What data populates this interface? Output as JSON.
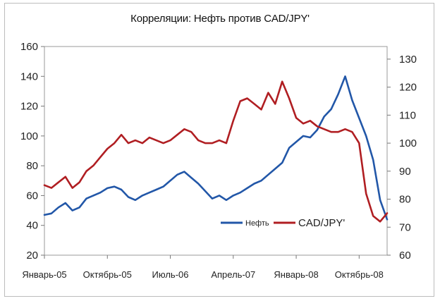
{
  "chart_data": {
    "type": "line",
    "title": "Корреляции: Нефть против CAD/JPY'",
    "xlabel": "",
    "ylabel": "",
    "y_left": {
      "ticks": [
        20,
        40,
        60,
        80,
        100,
        120,
        140,
        160
      ],
      "range": [
        20,
        160
      ]
    },
    "y_right": {
      "ticks": [
        60,
        70,
        80,
        90,
        100,
        110,
        120,
        130
      ],
      "range": [
        60,
        134.5
      ]
    },
    "x_ticks": [
      "Январь-05",
      "Октябрь-05",
      "Июль-06",
      "Апрель-07",
      "Январь-08",
      "Октябрь-08"
    ],
    "x_range": [
      0,
      49
    ],
    "x_tick_positions": [
      0,
      9,
      18,
      27,
      36,
      45
    ],
    "grid": false,
    "legend_position": "bottom-right",
    "series": [
      {
        "name": "Нефть",
        "axis": "left",
        "color": "#2257a8",
        "x": [
          0,
          1,
          2,
          3,
          4,
          5,
          6,
          7,
          8,
          9,
          10,
          11,
          12,
          13,
          14,
          15,
          16,
          17,
          18,
          19,
          20,
          21,
          22,
          23,
          24,
          25,
          26,
          27,
          28,
          29,
          30,
          31,
          32,
          33,
          34,
          35,
          36,
          37,
          38,
          39,
          40,
          41,
          42,
          43,
          44,
          45,
          46,
          47,
          48,
          49
        ],
        "values": [
          47,
          48,
          52,
          55,
          50,
          52,
          58,
          60,
          62,
          65,
          66,
          64,
          59,
          57,
          60,
          62,
          64,
          66,
          70,
          74,
          76,
          72,
          68,
          63,
          58,
          60,
          57,
          60,
          62,
          65,
          68,
          70,
          74,
          78,
          82,
          92,
          96,
          100,
          99,
          104,
          113,
          118,
          128,
          140,
          124,
          112,
          100,
          84,
          57,
          44
        ]
      },
      {
        "name": "CAD/JPY'",
        "axis": "right",
        "color": "#b01e22",
        "x": [
          0,
          1,
          2,
          3,
          4,
          5,
          6,
          7,
          8,
          9,
          10,
          11,
          12,
          13,
          14,
          15,
          16,
          17,
          18,
          19,
          20,
          21,
          22,
          23,
          24,
          25,
          26,
          27,
          28,
          29,
          30,
          31,
          32,
          33,
          34,
          35,
          36,
          37,
          38,
          39,
          40,
          41,
          42,
          43,
          44,
          45,
          46,
          47,
          48,
          49
        ],
        "values": [
          85,
          84,
          86,
          88,
          84,
          86,
          90,
          92,
          95,
          98,
          100,
          103,
          100,
          101,
          100,
          102,
          101,
          100,
          101,
          103,
          105,
          104,
          101,
          100,
          100,
          101,
          100,
          108,
          115,
          116,
          114,
          112,
          118,
          114,
          122,
          116,
          109,
          107,
          108,
          106,
          105,
          104,
          104,
          105,
          104,
          100,
          82,
          74,
          72,
          75
        ]
      }
    ]
  }
}
